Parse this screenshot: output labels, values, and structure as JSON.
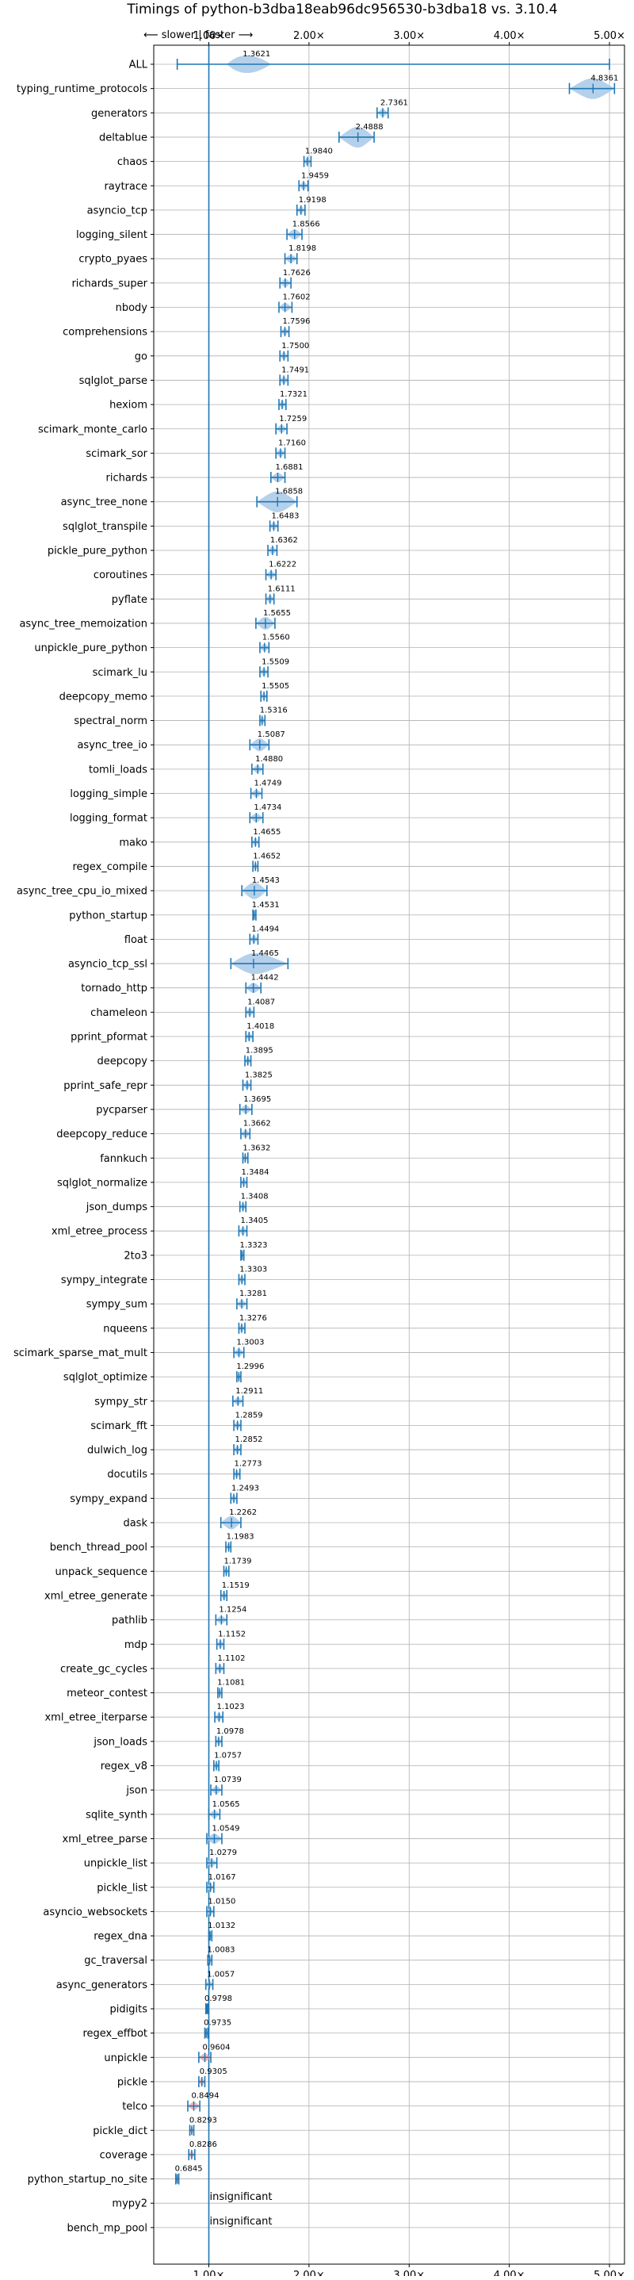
{
  "chart_data": {
    "type": "violin",
    "title": "Timings of python-b3dba18eab96dc956530-b3dba18 vs. 3.10.4",
    "direction_label": "⟵ slower  |  faster ⟶",
    "x_scale": "linear",
    "xlim": [
      0.45,
      5.15
    ],
    "x_ticks": [
      1.0,
      2.0,
      3.0,
      4.0,
      5.0
    ],
    "x_tick_labels": [
      "1.00×",
      "2.00×",
      "3.00×",
      "4.00×",
      "5.00×"
    ],
    "reference_line": 1.0,
    "grid": true,
    "colors": {
      "faster": "#a8c8e6",
      "slower": "#f4aaaa",
      "line": "#1f77b4",
      "grid": "#b0b0b0"
    },
    "benchmarks": [
      {
        "name": "ALL",
        "value": 1.3621,
        "lo": 0.6845,
        "hi": 5.0,
        "label": "1.3621"
      },
      {
        "name": "typing_runtime_protocols",
        "value": 4.8361,
        "lo": 4.6,
        "hi": 5.05,
        "label": "4.8361"
      },
      {
        "name": "generators",
        "value": 2.7361,
        "lo": 2.68,
        "hi": 2.79,
        "label": "2.7361"
      },
      {
        "name": "deltablue",
        "value": 2.4888,
        "lo": 2.3,
        "hi": 2.65,
        "label": "2.4888"
      },
      {
        "name": "chaos",
        "value": 1.984,
        "lo": 1.95,
        "hi": 2.02,
        "label": "1.9840"
      },
      {
        "name": "raytrace",
        "value": 1.9459,
        "lo": 1.9,
        "hi": 1.99,
        "label": "1.9459"
      },
      {
        "name": "asyncio_tcp",
        "value": 1.9198,
        "lo": 1.88,
        "hi": 1.96,
        "label": "1.9198"
      },
      {
        "name": "logging_silent",
        "value": 1.8566,
        "lo": 1.78,
        "hi": 1.93,
        "label": "1.8566"
      },
      {
        "name": "crypto_pyaes",
        "value": 1.8198,
        "lo": 1.76,
        "hi": 1.88,
        "label": "1.8198"
      },
      {
        "name": "richards_super",
        "value": 1.7626,
        "lo": 1.71,
        "hi": 1.82,
        "label": "1.7626"
      },
      {
        "name": "nbody",
        "value": 1.7602,
        "lo": 1.7,
        "hi": 1.83,
        "label": "1.7602"
      },
      {
        "name": "comprehensions",
        "value": 1.7596,
        "lo": 1.72,
        "hi": 1.8,
        "label": "1.7596"
      },
      {
        "name": "go",
        "value": 1.75,
        "lo": 1.71,
        "hi": 1.79,
        "label": "1.7500"
      },
      {
        "name": "sqlglot_parse",
        "value": 1.7491,
        "lo": 1.71,
        "hi": 1.79,
        "label": "1.7491"
      },
      {
        "name": "hexiom",
        "value": 1.7321,
        "lo": 1.7,
        "hi": 1.77,
        "label": "1.7321"
      },
      {
        "name": "scimark_monte_carlo",
        "value": 1.7259,
        "lo": 1.67,
        "hi": 1.78,
        "label": "1.7259"
      },
      {
        "name": "scimark_sor",
        "value": 1.716,
        "lo": 1.67,
        "hi": 1.76,
        "label": "1.7160"
      },
      {
        "name": "richards",
        "value": 1.6881,
        "lo": 1.62,
        "hi": 1.76,
        "label": "1.6881"
      },
      {
        "name": "async_tree_none",
        "value": 1.6858,
        "lo": 1.48,
        "hi": 1.88,
        "label": "1.6858"
      },
      {
        "name": "sqlglot_transpile",
        "value": 1.6483,
        "lo": 1.61,
        "hi": 1.69,
        "label": "1.6483"
      },
      {
        "name": "pickle_pure_python",
        "value": 1.6362,
        "lo": 1.59,
        "hi": 1.68,
        "label": "1.6362"
      },
      {
        "name": "coroutines",
        "value": 1.6222,
        "lo": 1.57,
        "hi": 1.67,
        "label": "1.6222"
      },
      {
        "name": "pyflate",
        "value": 1.6111,
        "lo": 1.57,
        "hi": 1.65,
        "label": "1.6111"
      },
      {
        "name": "async_tree_memoization",
        "value": 1.5655,
        "lo": 1.47,
        "hi": 1.66,
        "label": "1.5655"
      },
      {
        "name": "unpickle_pure_python",
        "value": 1.556,
        "lo": 1.51,
        "hi": 1.6,
        "label": "1.5560"
      },
      {
        "name": "scimark_lu",
        "value": 1.5509,
        "lo": 1.51,
        "hi": 1.59,
        "label": "1.5509"
      },
      {
        "name": "deepcopy_memo",
        "value": 1.5505,
        "lo": 1.52,
        "hi": 1.58,
        "label": "1.5505"
      },
      {
        "name": "spectral_norm",
        "value": 1.5316,
        "lo": 1.51,
        "hi": 1.56,
        "label": "1.5316"
      },
      {
        "name": "async_tree_io",
        "value": 1.5087,
        "lo": 1.41,
        "hi": 1.6,
        "label": "1.5087"
      },
      {
        "name": "tomli_loads",
        "value": 1.488,
        "lo": 1.43,
        "hi": 1.54,
        "label": "1.4880"
      },
      {
        "name": "logging_simple",
        "value": 1.4749,
        "lo": 1.42,
        "hi": 1.53,
        "label": "1.4749"
      },
      {
        "name": "logging_format",
        "value": 1.4734,
        "lo": 1.41,
        "hi": 1.54,
        "label": "1.4734"
      },
      {
        "name": "mako",
        "value": 1.4655,
        "lo": 1.43,
        "hi": 1.5,
        "label": "1.4655"
      },
      {
        "name": "regex_compile",
        "value": 1.4652,
        "lo": 1.44,
        "hi": 1.49,
        "label": "1.4652"
      },
      {
        "name": "async_tree_cpu_io_mixed",
        "value": 1.4543,
        "lo": 1.33,
        "hi": 1.58,
        "label": "1.4543"
      },
      {
        "name": "python_startup",
        "value": 1.4531,
        "lo": 1.44,
        "hi": 1.47,
        "label": "1.4531"
      },
      {
        "name": "float",
        "value": 1.4494,
        "lo": 1.41,
        "hi": 1.49,
        "label": "1.4494"
      },
      {
        "name": "asyncio_tcp_ssl",
        "value": 1.4465,
        "lo": 1.22,
        "hi": 1.79,
        "label": "1.4465"
      },
      {
        "name": "tornado_http",
        "value": 1.4442,
        "lo": 1.37,
        "hi": 1.52,
        "label": "1.4442"
      },
      {
        "name": "chameleon",
        "value": 1.4087,
        "lo": 1.37,
        "hi": 1.45,
        "label": "1.4087"
      },
      {
        "name": "pprint_pformat",
        "value": 1.4018,
        "lo": 1.37,
        "hi": 1.44,
        "label": "1.4018"
      },
      {
        "name": "deepcopy",
        "value": 1.3895,
        "lo": 1.36,
        "hi": 1.42,
        "label": "1.3895"
      },
      {
        "name": "pprint_safe_repr",
        "value": 1.3825,
        "lo": 1.34,
        "hi": 1.42,
        "label": "1.3825"
      },
      {
        "name": "pycparser",
        "value": 1.3695,
        "lo": 1.31,
        "hi": 1.43,
        "label": "1.3695"
      },
      {
        "name": "deepcopy_reduce",
        "value": 1.3662,
        "lo": 1.32,
        "hi": 1.41,
        "label": "1.3662"
      },
      {
        "name": "fannkuch",
        "value": 1.3632,
        "lo": 1.34,
        "hi": 1.39,
        "label": "1.3632"
      },
      {
        "name": "sqlglot_normalize",
        "value": 1.3484,
        "lo": 1.32,
        "hi": 1.38,
        "label": "1.3484"
      },
      {
        "name": "json_dumps",
        "value": 1.3408,
        "lo": 1.31,
        "hi": 1.37,
        "label": "1.3408"
      },
      {
        "name": "xml_etree_process",
        "value": 1.3405,
        "lo": 1.3,
        "hi": 1.38,
        "label": "1.3405"
      },
      {
        "name": "2to3",
        "value": 1.3323,
        "lo": 1.32,
        "hi": 1.35,
        "label": "1.3323"
      },
      {
        "name": "sympy_integrate",
        "value": 1.3303,
        "lo": 1.3,
        "hi": 1.36,
        "label": "1.3303"
      },
      {
        "name": "sympy_sum",
        "value": 1.3281,
        "lo": 1.28,
        "hi": 1.38,
        "label": "1.3281"
      },
      {
        "name": "nqueens",
        "value": 1.3276,
        "lo": 1.3,
        "hi": 1.36,
        "label": "1.3276"
      },
      {
        "name": "scimark_sparse_mat_mult",
        "value": 1.3003,
        "lo": 1.25,
        "hi": 1.35,
        "label": "1.3003"
      },
      {
        "name": "sqlglot_optimize",
        "value": 1.2996,
        "lo": 1.28,
        "hi": 1.32,
        "label": "1.2996"
      },
      {
        "name": "sympy_str",
        "value": 1.2911,
        "lo": 1.24,
        "hi": 1.34,
        "label": "1.2911"
      },
      {
        "name": "scimark_fft",
        "value": 1.2859,
        "lo": 1.25,
        "hi": 1.32,
        "label": "1.2859"
      },
      {
        "name": "dulwich_log",
        "value": 1.2852,
        "lo": 1.25,
        "hi": 1.32,
        "label": "1.2852"
      },
      {
        "name": "docutils",
        "value": 1.2773,
        "lo": 1.25,
        "hi": 1.31,
        "label": "1.2773"
      },
      {
        "name": "sympy_expand",
        "value": 1.2493,
        "lo": 1.22,
        "hi": 1.28,
        "label": "1.2493"
      },
      {
        "name": "dask",
        "value": 1.2262,
        "lo": 1.12,
        "hi": 1.32,
        "label": "1.2262"
      },
      {
        "name": "bench_thread_pool",
        "value": 1.1983,
        "lo": 1.17,
        "hi": 1.22,
        "label": "1.1983"
      },
      {
        "name": "unpack_sequence",
        "value": 1.1739,
        "lo": 1.15,
        "hi": 1.2,
        "label": "1.1739"
      },
      {
        "name": "xml_etree_generate",
        "value": 1.1519,
        "lo": 1.12,
        "hi": 1.18,
        "label": "1.1519"
      },
      {
        "name": "pathlib",
        "value": 1.1254,
        "lo": 1.07,
        "hi": 1.18,
        "label": "1.1254"
      },
      {
        "name": "mdp",
        "value": 1.1152,
        "lo": 1.08,
        "hi": 1.15,
        "label": "1.1152"
      },
      {
        "name": "create_gc_cycles",
        "value": 1.1102,
        "lo": 1.07,
        "hi": 1.15,
        "label": "1.1102"
      },
      {
        "name": "meteor_contest",
        "value": 1.1081,
        "lo": 1.09,
        "hi": 1.13,
        "label": "1.1081"
      },
      {
        "name": "xml_etree_iterparse",
        "value": 1.1023,
        "lo": 1.06,
        "hi": 1.14,
        "label": "1.1023"
      },
      {
        "name": "json_loads",
        "value": 1.0978,
        "lo": 1.07,
        "hi": 1.13,
        "label": "1.0978"
      },
      {
        "name": "regex_v8",
        "value": 1.0757,
        "lo": 1.05,
        "hi": 1.1,
        "label": "1.0757"
      },
      {
        "name": "json",
        "value": 1.0739,
        "lo": 1.02,
        "hi": 1.13,
        "label": "1.0739"
      },
      {
        "name": "sqlite_synth",
        "value": 1.0565,
        "lo": 1.0,
        "hi": 1.11,
        "label": "1.0565"
      },
      {
        "name": "xml_etree_parse",
        "value": 1.0549,
        "lo": 0.98,
        "hi": 1.13,
        "label": "1.0549"
      },
      {
        "name": "unpickle_list",
        "value": 1.0279,
        "lo": 0.98,
        "hi": 1.08,
        "label": "1.0279"
      },
      {
        "name": "pickle_list",
        "value": 1.0167,
        "lo": 0.98,
        "hi": 1.05,
        "label": "1.0167"
      },
      {
        "name": "asyncio_websockets",
        "value": 1.015,
        "lo": 0.98,
        "hi": 1.05,
        "label": "1.0150"
      },
      {
        "name": "regex_dna",
        "value": 1.0132,
        "lo": 1.0,
        "hi": 1.03,
        "label": "1.0132"
      },
      {
        "name": "gc_traversal",
        "value": 1.0083,
        "lo": 0.99,
        "hi": 1.03,
        "label": "1.0083"
      },
      {
        "name": "async_generators",
        "value": 1.0057,
        "lo": 0.97,
        "hi": 1.04,
        "label": "1.0057"
      },
      {
        "name": "pidigits",
        "value": 0.9798,
        "lo": 0.97,
        "hi": 0.99,
        "label": "0.9798"
      },
      {
        "name": "regex_effbot",
        "value": 0.9735,
        "lo": 0.96,
        "hi": 0.99,
        "label": "0.9735"
      },
      {
        "name": "unpickle",
        "value": 0.9604,
        "lo": 0.9,
        "hi": 1.02,
        "label": "0.9604"
      },
      {
        "name": "pickle",
        "value": 0.9305,
        "lo": 0.9,
        "hi": 0.96,
        "label": "0.9305"
      },
      {
        "name": "telco",
        "value": 0.8494,
        "lo": 0.79,
        "hi": 0.91,
        "label": "0.8494"
      },
      {
        "name": "pickle_dict",
        "value": 0.8293,
        "lo": 0.81,
        "hi": 0.85,
        "label": "0.8293"
      },
      {
        "name": "coverage",
        "value": 0.8286,
        "lo": 0.8,
        "hi": 0.86,
        "label": "0.8286"
      },
      {
        "name": "python_startup_no_site",
        "value": 0.6845,
        "lo": 0.67,
        "hi": 0.7,
        "label": "0.6845"
      },
      {
        "name": "mypy2",
        "value": null,
        "label": "insignificant"
      },
      {
        "name": "bench_mp_pool",
        "value": null,
        "label": "insignificant"
      }
    ]
  }
}
